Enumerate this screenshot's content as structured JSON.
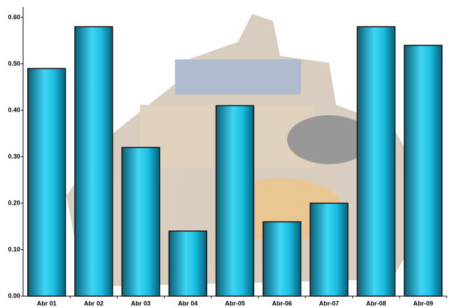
{
  "chart_data": {
    "type": "bar",
    "categories": [
      "Abr 01",
      "Abr 02",
      "Abr 03",
      "Abr 04",
      "Abr-05",
      "Abr-06",
      "Abr-07",
      "Abr-08",
      "Abr-09"
    ],
    "values": [
      0.49,
      0.58,
      0.32,
      0.14,
      0.41,
      0.16,
      0.2,
      0.58,
      0.54
    ],
    "color": "#1bbde0",
    "ylim": [
      0,
      0.6
    ],
    "yticks": [
      {
        "value": 0,
        "label": "0.00"
      },
      {
        "value": 0.1,
        "label": "0.10"
      },
      {
        "value": 0.2,
        "label": "0.20"
      },
      {
        "value": 0.3,
        "label": "0.30"
      },
      {
        "value": 0.4,
        "label": "0.40"
      },
      {
        "value": 0.5,
        "label": "0.50"
      },
      {
        "value": 0.6,
        "label": "0.60"
      }
    ],
    "grid": false
  }
}
